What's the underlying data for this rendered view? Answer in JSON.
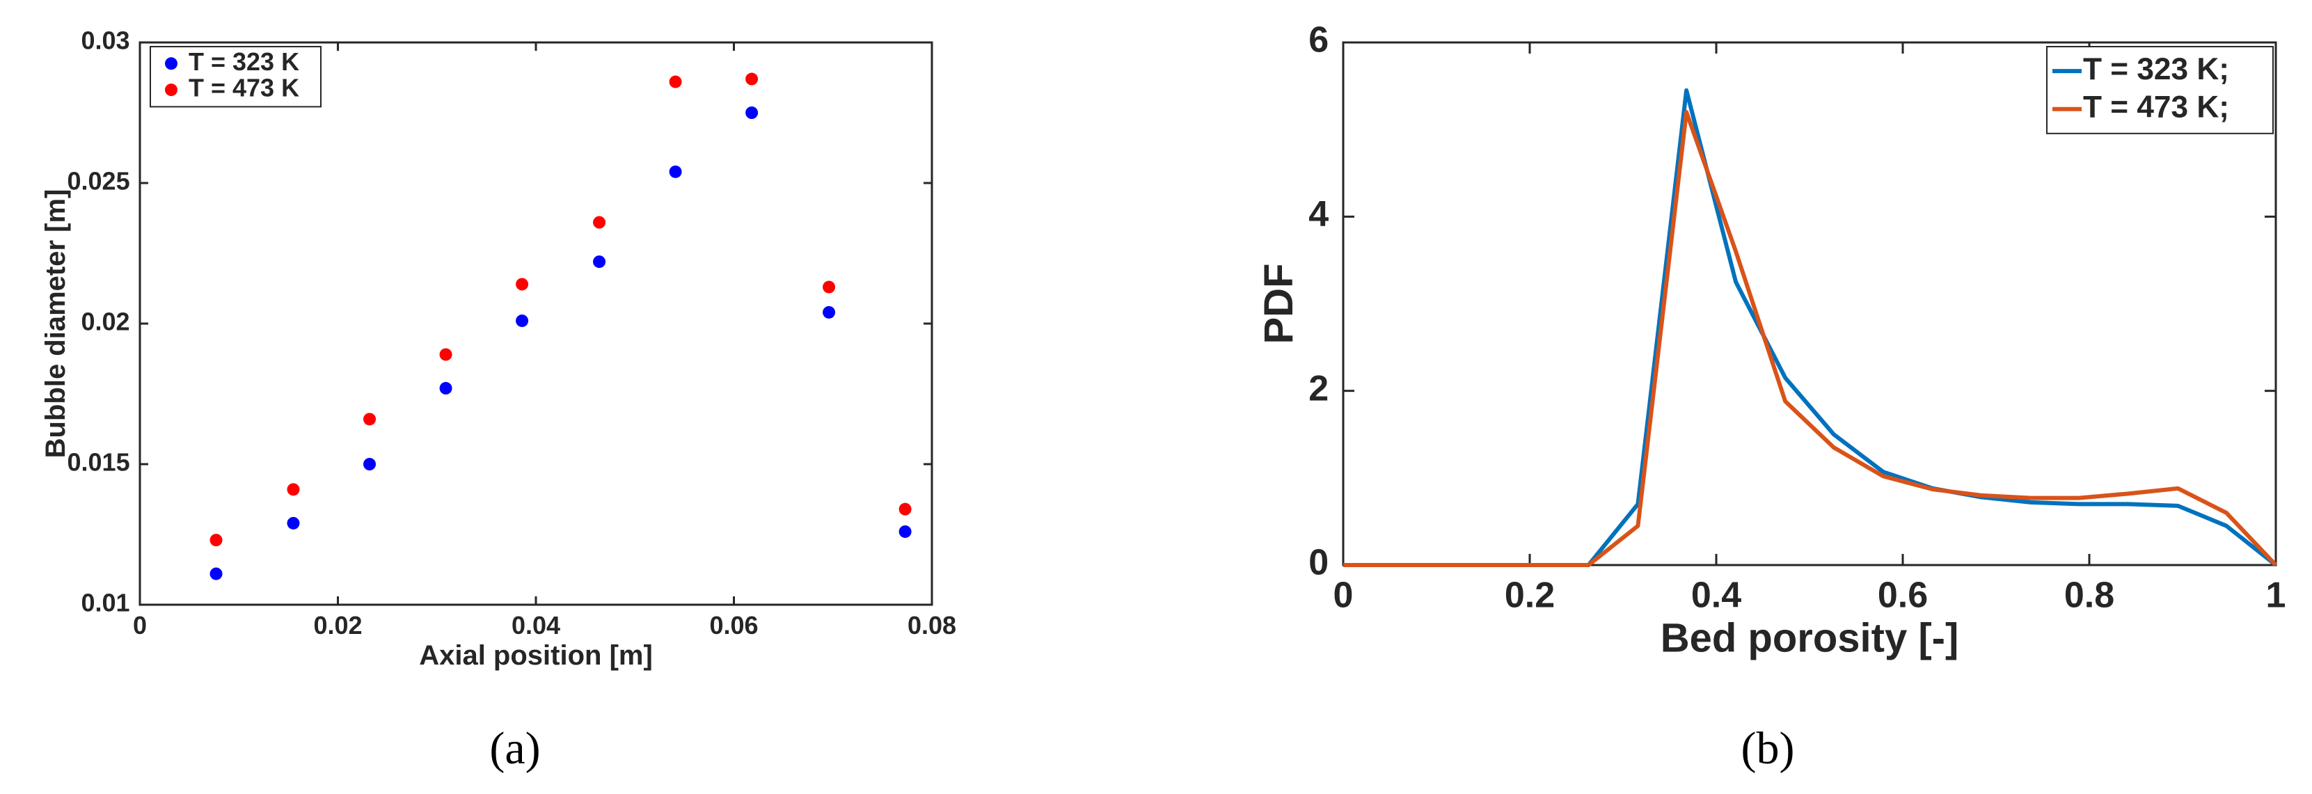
{
  "chart_data": [
    {
      "type": "scatter",
      "caption": "(a)",
      "xlabel": "Axial position [m]",
      "ylabel": "Bubble diameter [m]",
      "x": [
        0.0077,
        0.0155,
        0.0232,
        0.0309,
        0.0386,
        0.0464,
        0.0541,
        0.0618,
        0.0696,
        0.0773
      ],
      "series": [
        {
          "name": "T = 323 K",
          "color": "#0000ff",
          "values": [
            0.0111,
            0.0129,
            0.015,
            0.0177,
            0.0201,
            0.0222,
            0.0254,
            0.0275,
            0.0204,
            0.0126
          ]
        },
        {
          "name": "T = 473 K",
          "color": "#ff0000",
          "values": [
            0.0123,
            0.0141,
            0.0166,
            0.0189,
            0.0214,
            0.0236,
            0.0286,
            0.0287,
            0.0213,
            0.0134
          ]
        }
      ],
      "xlim": [
        0,
        0.08
      ],
      "xticks": [
        0,
        0.02,
        0.04,
        0.06,
        0.08
      ],
      "ylim": [
        0.01,
        0.03
      ],
      "yticks": [
        0.01,
        0.015,
        0.02,
        0.025,
        0.03
      ],
      "legend": "upper left"
    },
    {
      "type": "line",
      "caption": "(b)",
      "xlabel": "Bed porosity [-]",
      "ylabel": "PDF",
      "x": [
        0,
        0.263,
        0.316,
        0.368,
        0.421,
        0.474,
        0.526,
        0.579,
        0.632,
        0.684,
        0.737,
        0.789,
        0.842,
        0.895,
        0.947,
        1
      ],
      "series": [
        {
          "name": "T = 323 K;",
          "color": "#0072bd",
          "values": [
            0,
            0,
            0.7,
            5.45,
            3.25,
            2.15,
            1.5,
            1.07,
            0.88,
            0.78,
            0.72,
            0.7,
            0.7,
            0.68,
            0.45,
            0
          ]
        },
        {
          "name": "T = 473 K;",
          "color": "#d95319",
          "values": [
            0,
            0,
            0.45,
            5.2,
            3.6,
            1.88,
            1.35,
            1.02,
            0.87,
            0.8,
            0.77,
            0.77,
            0.82,
            0.88,
            0.6,
            0
          ]
        }
      ],
      "xlim": [
        0,
        1
      ],
      "xticks": [
        0,
        0.2,
        0.4,
        0.6,
        0.8,
        1
      ],
      "ylim": [
        0,
        6
      ],
      "yticks": [
        0,
        2,
        4,
        6
      ],
      "legend": "upper right"
    }
  ]
}
